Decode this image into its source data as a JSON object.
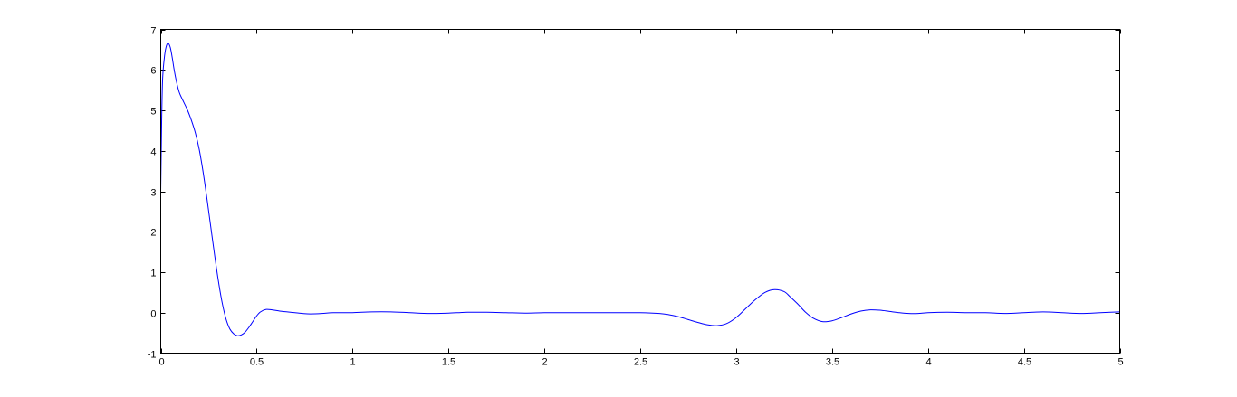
{
  "chart_data": {
    "type": "line",
    "title": "",
    "xlabel": "",
    "ylabel": "",
    "xlim": [
      0,
      5
    ],
    "ylim": [
      -1,
      7
    ],
    "grid": false,
    "box": true,
    "x_ticks": [
      0,
      0.5,
      1,
      1.5,
      2,
      2.5,
      3,
      3.5,
      4,
      4.5,
      5
    ],
    "x_tick_labels": [
      "0",
      "0.5",
      "1",
      "1.5",
      "2",
      "2.5",
      "3",
      "3.5",
      "4",
      "4.5",
      "5"
    ],
    "y_ticks": [
      -1,
      0,
      1,
      2,
      3,
      4,
      5,
      6,
      7
    ],
    "y_tick_labels": [
      "-1",
      "0",
      "1",
      "2",
      "3",
      "4",
      "5",
      "6",
      "7"
    ],
    "series": [
      {
        "color": "#0000ff",
        "x": [
          0,
          0.005,
          0.01,
          0.02,
          0.03,
          0.04,
          0.05,
          0.06,
          0.07,
          0.08,
          0.09,
          0.1,
          0.12,
          0.14,
          0.16,
          0.18,
          0.2,
          0.22,
          0.24,
          0.26,
          0.28,
          0.3,
          0.32,
          0.34,
          0.36,
          0.38,
          0.4,
          0.42,
          0.44,
          0.46,
          0.48,
          0.5,
          0.52,
          0.55,
          0.58,
          0.62,
          0.66,
          0.7,
          0.74,
          0.78,
          0.84,
          0.9,
          1.0,
          1.1,
          1.2,
          1.3,
          1.4,
          1.5,
          1.6,
          1.7,
          1.8,
          1.9,
          2.0,
          2.1,
          2.2,
          2.3,
          2.4,
          2.5,
          2.6,
          2.65,
          2.7,
          2.75,
          2.8,
          2.85,
          2.9,
          2.95,
          3.0,
          3.05,
          3.1,
          3.15,
          3.2,
          3.25,
          3.28,
          3.32,
          3.36,
          3.4,
          3.45,
          3.5,
          3.55,
          3.6,
          3.65,
          3.7,
          3.75,
          3.8,
          3.85,
          3.9,
          3.95,
          4.0,
          4.1,
          4.2,
          4.3,
          4.4,
          4.5,
          4.6,
          4.7,
          4.8,
          4.9,
          5.0
        ],
        "y": [
          3.0,
          4.8,
          5.8,
          6.35,
          6.6,
          6.65,
          6.55,
          6.3,
          6.0,
          5.75,
          5.55,
          5.4,
          5.2,
          5.0,
          4.75,
          4.45,
          4.05,
          3.5,
          2.85,
          2.15,
          1.45,
          0.8,
          0.25,
          -0.15,
          -0.4,
          -0.52,
          -0.57,
          -0.55,
          -0.48,
          -0.36,
          -0.22,
          -0.08,
          0.02,
          0.08,
          0.07,
          0.04,
          0.02,
          0.0,
          -0.02,
          -0.03,
          -0.02,
          0.0,
          0.0,
          0.02,
          0.02,
          0.0,
          -0.02,
          -0.01,
          0.01,
          0.01,
          0.0,
          -0.01,
          0.0,
          0.0,
          0.0,
          0.0,
          0.0,
          0.0,
          -0.02,
          -0.05,
          -0.1,
          -0.17,
          -0.24,
          -0.3,
          -0.32,
          -0.27,
          -0.12,
          0.1,
          0.32,
          0.5,
          0.57,
          0.52,
          0.4,
          0.22,
          0.02,
          -0.13,
          -0.22,
          -0.2,
          -0.12,
          -0.03,
          0.04,
          0.07,
          0.06,
          0.03,
          0.0,
          -0.02,
          -0.02,
          0.0,
          0.01,
          0.0,
          0.0,
          -0.02,
          0.0,
          0.02,
          0.0,
          -0.02,
          0.0,
          0.02
        ]
      }
    ]
  }
}
